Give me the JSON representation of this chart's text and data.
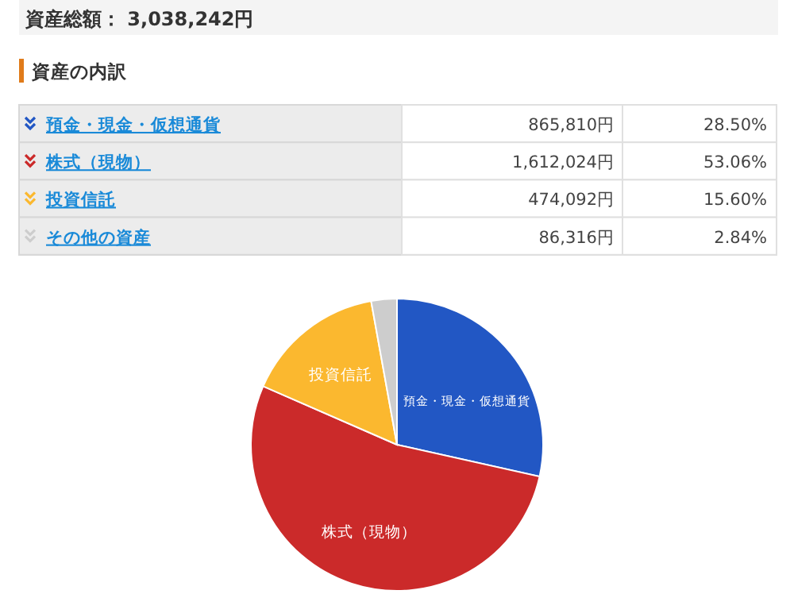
{
  "chart_data": {
    "type": "pie",
    "title": "資産総額： 3,038,242円",
    "subtitle": "資産の内訳",
    "categories": [
      "預金・現金・仮想通貨",
      "株式（現物）",
      "投資信託",
      "その他の資産"
    ],
    "values": [
      865810,
      1612024,
      474092,
      86316
    ],
    "value_labels": [
      "865,810円",
      "1,612,024円",
      "474,092円",
      "86,316円"
    ],
    "legend": "top",
    "colors": [
      "#2257c4",
      "#cb2a2a",
      "#fbb82f",
      "#cdcdcd"
    ],
    "annotations": [
      "28.50%",
      "53.06%",
      "15.60%",
      "2.84%"
    ]
  }
}
